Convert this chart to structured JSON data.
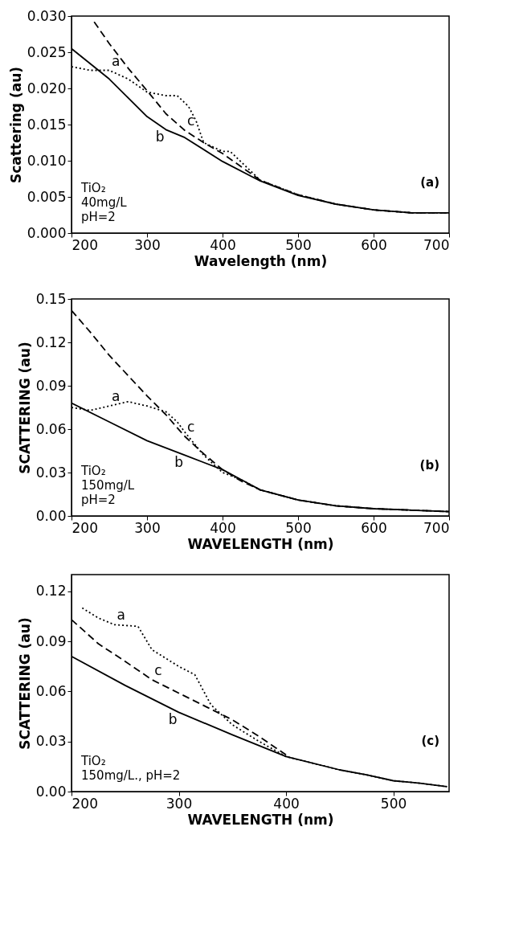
{
  "chart_data": [
    {
      "type": "line",
      "xlabel": "Wavelength (nm)",
      "ylabel": "Scattering (au)",
      "xlim": [
        200,
        700
      ],
      "xticks": [
        200,
        300,
        400,
        500,
        600,
        700
      ],
      "ylim": [
        0,
        0.03
      ],
      "yticks": [
        {
          "value": 0,
          "label": "0.000"
        },
        {
          "value": 0.005,
          "label": "0.005"
        },
        {
          "value": 0.01,
          "label": "0.010"
        },
        {
          "value": 0.015,
          "label": "0.015"
        },
        {
          "value": 0.02,
          "label": "0.020"
        },
        {
          "value": 0.025,
          "label": "0.025"
        },
        {
          "value": 0.03,
          "label": "0.030"
        }
      ],
      "grid": false,
      "series": [
        {
          "name": "a",
          "color": "#000000",
          "line_style": "dotted",
          "x": [
            200,
            225,
            250,
            275,
            300,
            325,
            340,
            355,
            365,
            375,
            400,
            410,
            450,
            500,
            550,
            600,
            650,
            700
          ],
          "values": [
            0.023,
            0.0225,
            0.0225,
            0.0213,
            0.0195,
            0.019,
            0.019,
            0.0175,
            0.0155,
            0.0125,
            0.0113,
            0.0113,
            0.0073,
            0.0053,
            0.004,
            0.0032,
            0.0028,
            0.0028
          ]
        },
        {
          "name": "b",
          "color": "#000000",
          "line_style": "solid",
          "x": [
            200,
            250,
            300,
            325,
            350,
            400,
            450,
            500,
            550,
            600,
            650,
            700
          ],
          "values": [
            0.0255,
            0.0213,
            0.0161,
            0.0143,
            0.0132,
            0.0099,
            0.0072,
            0.0052,
            0.004,
            0.0032,
            0.0028,
            0.0028
          ]
        },
        {
          "name": "c",
          "color": "#000000",
          "line_style": "dashed",
          "x": [
            230,
            250,
            275,
            300,
            325,
            350,
            375,
            400,
            450,
            500,
            550,
            600,
            650,
            700
          ],
          "values": [
            0.0292,
            0.0262,
            0.0228,
            0.0197,
            0.0165,
            0.0142,
            0.0125,
            0.011,
            0.0073,
            0.0053,
            0.004,
            0.0032,
            0.0028,
            0.0028
          ]
        }
      ],
      "annotations": [
        "TiO₂",
        "40mg/L",
        "pH=2",
        "(a)"
      ]
    },
    {
      "type": "line",
      "xlabel": "WAVELENGTH (nm)",
      "ylabel": "SCATTERING (au)",
      "xlim": [
        200,
        700
      ],
      "xticks": [
        200,
        300,
        400,
        500,
        600,
        700
      ],
      "ylim": [
        0,
        0.15
      ],
      "yticks": [
        {
          "value": 0,
          "label": "0.00"
        },
        {
          "value": 0.03,
          "label": "0.03"
        },
        {
          "value": 0.06,
          "label": "0.06"
        },
        {
          "value": 0.09,
          "label": "0.09"
        },
        {
          "value": 0.12,
          "label": "0.12"
        },
        {
          "value": 0.15,
          "label": "0.15"
        }
      ],
      "grid": false,
      "series": [
        {
          "name": "a",
          "color": "#000000",
          "line_style": "dotted",
          "x": [
            200,
            225,
            250,
            275,
            300,
            325,
            340,
            350,
            375,
            400,
            425,
            450,
            500,
            550,
            600,
            650,
            700
          ],
          "values": [
            0.075,
            0.073,
            0.076,
            0.079,
            0.076,
            0.072,
            0.065,
            0.058,
            0.042,
            0.03,
            0.025,
            0.018,
            0.011,
            0.007,
            0.005,
            0.004,
            0.003
          ]
        },
        {
          "name": "b",
          "color": "#000000",
          "line_style": "solid",
          "x": [
            200,
            250,
            300,
            350,
            400,
            425,
            450,
            500,
            550,
            600,
            650,
            700
          ],
          "values": [
            0.078,
            0.065,
            0.052,
            0.042,
            0.032,
            0.025,
            0.018,
            0.011,
            0.007,
            0.005,
            0.004,
            0.003
          ]
        },
        {
          "name": "c",
          "color": "#000000",
          "line_style": "dashed",
          "x": [
            200,
            225,
            250,
            275,
            300,
            325,
            350,
            375,
            400,
            425,
            450,
            500,
            550,
            600,
            650,
            700
          ],
          "values": [
            0.142,
            0.127,
            0.111,
            0.097,
            0.083,
            0.07,
            0.055,
            0.043,
            0.032,
            0.024,
            0.018,
            0.011,
            0.007,
            0.005,
            0.004,
            0.003
          ]
        }
      ],
      "annotations": [
        "TiO₂",
        "150mg/L",
        "pH=2",
        "(b)"
      ]
    },
    {
      "type": "line",
      "xlabel": "WAVELENGTH (nm)",
      "ylabel": "SCATTERING (au)",
      "xlim": [
        200,
        552
      ],
      "xticks": [
        200,
        300,
        400,
        500
      ],
      "ylim": [
        0,
        0.13
      ],
      "yticks": [
        {
          "value": 0,
          "label": "0.00"
        },
        {
          "value": 0.03,
          "label": "0.03"
        },
        {
          "value": 0.06,
          "label": "0.06"
        },
        {
          "value": 0.09,
          "label": "0.09"
        },
        {
          "value": 0.12,
          "label": "0.12"
        }
      ],
      "grid": false,
      "series": [
        {
          "name": "a",
          "color": "#000000",
          "line_style": "dotted",
          "x": [
            210,
            225,
            240,
            262,
            275,
            300,
            315,
            330,
            350,
            375,
            400,
            450,
            475,
            500,
            525,
            550
          ],
          "values": [
            0.11,
            0.104,
            0.1,
            0.099,
            0.085,
            0.075,
            0.07,
            0.052,
            0.04,
            0.03,
            0.021,
            0.013,
            0.01,
            0.0065,
            0.005,
            0.003
          ]
        },
        {
          "name": "b",
          "color": "#000000",
          "line_style": "solid",
          "x": [
            200,
            250,
            300,
            350,
            400,
            450,
            475,
            500,
            525,
            550
          ],
          "values": [
            0.081,
            0.0636,
            0.0475,
            0.034,
            0.021,
            0.013,
            0.01,
            0.0065,
            0.005,
            0.003
          ]
        },
        {
          "name": "c",
          "color": "#000000",
          "line_style": "dashed",
          "x": [
            200,
            225,
            250,
            275,
            300,
            325,
            350,
            375,
            400
          ],
          "values": [
            0.103,
            0.0886,
            0.078,
            0.067,
            0.059,
            0.051,
            0.043,
            0.033,
            0.022
          ]
        }
      ],
      "annotations": [
        "TiO₂",
        "150mg/L., pH=2",
        "(c)"
      ]
    }
  ]
}
